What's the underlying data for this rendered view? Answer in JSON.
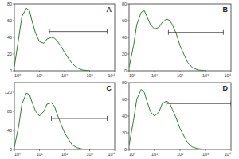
{
  "chart_data": [
    {
      "type": "line",
      "title": "A",
      "log": "x",
      "grid": false,
      "color": "#2e7d32",
      "x": [
        1,
        1.5,
        2,
        3,
        4,
        5,
        7,
        10,
        15,
        20,
        30,
        40,
        50,
        70,
        100,
        150,
        200,
        300,
        500,
        1000
      ],
      "values": [
        5,
        40,
        65,
        75,
        72,
        60,
        45,
        35,
        33,
        38,
        40,
        39,
        36,
        30,
        22,
        14,
        9,
        4,
        1,
        0
      ],
      "xlim": [
        1,
        10000
      ],
      "xticks": [
        {
          "value": 1,
          "label": "10⁰"
        },
        {
          "value": 10,
          "label": "10¹"
        },
        {
          "value": 100,
          "label": "10²"
        },
        {
          "value": 1000,
          "label": "10³"
        },
        {
          "value": 10000,
          "label": "10⁴"
        }
      ],
      "ylim": [
        0,
        80
      ],
      "yticks": [
        0,
        20,
        40,
        60,
        80
      ],
      "gate": {
        "x": [
          25,
          5000
        ],
        "y": 47
      }
    },
    {
      "type": "line",
      "title": "B",
      "log": "x",
      "grid": false,
      "color": "#2e7d32",
      "x": [
        1,
        1.5,
        2,
        3,
        4,
        5,
        7,
        10,
        15,
        20,
        30,
        40,
        50,
        70,
        100,
        150,
        200,
        300,
        500,
        1000
      ],
      "values": [
        4,
        30,
        55,
        70,
        72,
        65,
        55,
        50,
        52,
        58,
        62,
        60,
        55,
        45,
        30,
        18,
        10,
        4,
        1,
        0
      ],
      "xlim": [
        1,
        10000
      ],
      "xticks": [
        {
          "value": 1,
          "label": "10⁰"
        },
        {
          "value": 10,
          "label": "10¹"
        },
        {
          "value": 100,
          "label": "10²"
        },
        {
          "value": 1000,
          "label": "10³"
        },
        {
          "value": 10000,
          "label": "10⁴"
        }
      ],
      "ylim": [
        0,
        80
      ],
      "yticks": [
        0,
        20,
        40,
        60,
        80
      ],
      "gate": {
        "x": [
          35,
          5000
        ],
        "y": 46
      }
    },
    {
      "type": "line",
      "title": "C",
      "log": "x",
      "grid": false,
      "color": "#2e7d32",
      "x": [
        1,
        1.5,
        2,
        3,
        4,
        5,
        7,
        10,
        15,
        20,
        30,
        40,
        50,
        70,
        100,
        150,
        200,
        300,
        500,
        1000
      ],
      "values": [
        5,
        50,
        95,
        118,
        115,
        100,
        80,
        70,
        80,
        95,
        98,
        90,
        75,
        55,
        35,
        20,
        10,
        4,
        1,
        0
      ],
      "xlim": [
        1,
        10000
      ],
      "xticks": [
        {
          "value": 1,
          "label": "10⁰"
        },
        {
          "value": 10,
          "label": "10¹"
        },
        {
          "value": 100,
          "label": "10²"
        },
        {
          "value": 1000,
          "label": "10³"
        },
        {
          "value": 10000,
          "label": "10⁴"
        }
      ],
      "ylim": [
        0,
        140
      ],
      "yticks": [
        0,
        40,
        80,
        120
      ],
      "gate": {
        "x": [
          30,
          5000
        ],
        "y": 65
      }
    },
    {
      "type": "line",
      "title": "D",
      "log": "x",
      "grid": false,
      "color": "#2e7d32",
      "x": [
        1,
        1.5,
        2,
        3,
        4,
        5,
        7,
        10,
        15,
        20,
        30,
        40,
        50,
        70,
        100,
        150,
        200,
        300,
        500,
        1000
      ],
      "values": [
        5,
        35,
        60,
        72,
        68,
        58,
        45,
        40,
        45,
        55,
        58,
        55,
        48,
        38,
        25,
        15,
        8,
        3,
        1,
        0
      ],
      "xlim": [
        1,
        10000
      ],
      "xticks": [
        {
          "value": 1,
          "label": "10⁰"
        },
        {
          "value": 10,
          "label": "10¹"
        },
        {
          "value": 100,
          "label": "10²"
        },
        {
          "value": 1000,
          "label": "10³"
        },
        {
          "value": 10000,
          "label": "10⁴"
        }
      ],
      "ylim": [
        0,
        80
      ],
      "yticks": [
        0,
        20,
        40,
        60,
        80
      ],
      "gate": {
        "x": [
          30,
          10000
        ],
        "y": 55
      }
    }
  ]
}
